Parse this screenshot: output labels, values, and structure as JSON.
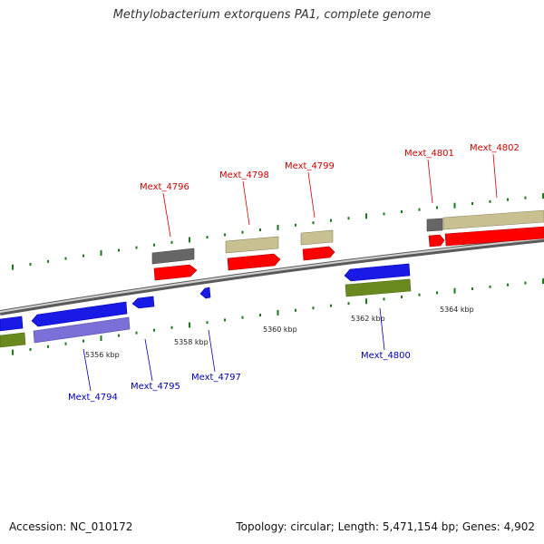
{
  "title": "Methylobacterium extorquens PA1, complete genome",
  "footer": {
    "accession": "Accession: NC_010172",
    "summary": "Topology: circular; Length: 5,471,154 bp; Genes: 4,902"
  },
  "colors": {
    "label_forward": "#cc0000",
    "label_reverse": "#0000aa",
    "gene_red": "#ff0000",
    "gene_blue": "#1a1ae6",
    "gene_olive": "#c8c090",
    "gene_green": "#6a8a20",
    "gene_gray": "#666666",
    "gene_purple": "#7a70d8",
    "tick_green": "#1a7a1a"
  },
  "axis": {
    "ticks": [
      {
        "label": "5356 kbp"
      },
      {
        "label": "5358 kbp"
      },
      {
        "label": "5360 kbp"
      },
      {
        "label": "5362 kbp"
      },
      {
        "label": "5364 kbp"
      }
    ]
  },
  "genes": [
    {
      "id": "Mext_4794",
      "strand": "reverse"
    },
    {
      "id": "Mext_4795",
      "strand": "reverse"
    },
    {
      "id": "Mext_4796",
      "strand": "forward"
    },
    {
      "id": "Mext_4797",
      "strand": "reverse"
    },
    {
      "id": "Mext_4798",
      "strand": "forward"
    },
    {
      "id": "Mext_4799",
      "strand": "forward"
    },
    {
      "id": "Mext_4800",
      "strand": "reverse"
    },
    {
      "id": "Mext_4801",
      "strand": "forward"
    },
    {
      "id": "Mext_4802",
      "strand": "forward"
    }
  ]
}
